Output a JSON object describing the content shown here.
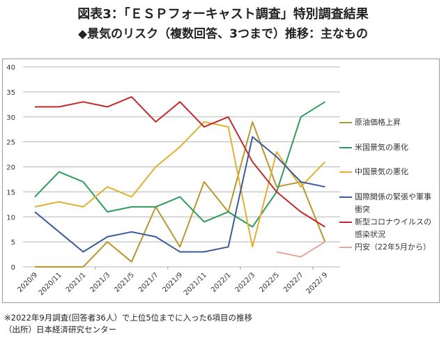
{
  "title": "図表3：「ＥＳＰフォーキャスト調査」特別調査結果",
  "subtitle": "◆景気のリスク（複数回答、3つまで）推移：主なもの",
  "footnote": "※2022年9月調査(回答者36人）で上位5位までに入った6項目の推移",
  "source": "（出所）日本経済研究センター",
  "chart_data": {
    "type": "line",
    "title": "景気のリスク（複数回答、3つまで）推移：主なもの",
    "xlabel": "",
    "ylabel": "",
    "ylim": [
      0,
      40
    ],
    "yticks": [
      0,
      5,
      10,
      15,
      20,
      25,
      30,
      35,
      40
    ],
    "grid": true,
    "legend": "right",
    "categories": [
      "2020/9",
      "2020/11",
      "2021/1",
      "2021/3",
      "2021/5",
      "2021/7",
      "2021/9",
      "2021/11",
      "2022/1",
      "2022/3",
      "2022/5",
      "2022/7",
      "2022/ 9"
    ],
    "series": [
      {
        "name": "原油価格上昇",
        "color": "#B8962E",
        "values": [
          0,
          0,
          0,
          5,
          1,
          12,
          4,
          17,
          11,
          29,
          16,
          17,
          5
        ]
      },
      {
        "name": "米国景気の悪化",
        "color": "#2E9B5A",
        "values": [
          14,
          19,
          17,
          11,
          12,
          12,
          14,
          9,
          11,
          8,
          15,
          30,
          33
        ]
      },
      {
        "name": "中国景気の悪化",
        "color": "#E0B02E",
        "values": [
          12,
          13,
          12,
          16,
          14,
          20,
          24,
          29,
          28,
          4,
          23,
          16,
          21
        ]
      },
      {
        "name": "国際関係の緊張や軍事衝突",
        "color": "#3A5A9A",
        "values": [
          11,
          7,
          3,
          6,
          7,
          6,
          3,
          3,
          4,
          26,
          22,
          17,
          16
        ]
      },
      {
        "name": "新型コロナウイルスの感染状況",
        "color": "#C0282A",
        "values": [
          32,
          32,
          33,
          32,
          34,
          29,
          33,
          28,
          30,
          21,
          15,
          11,
          8
        ]
      },
      {
        "name": "円安（22年5月から）",
        "color": "#E8A898",
        "values": [
          null,
          null,
          null,
          null,
          null,
          null,
          null,
          null,
          null,
          null,
          3,
          2,
          5
        ]
      }
    ],
    "legend_labels": [
      [
        "原油価格上昇"
      ],
      [
        "米国景気の悪化"
      ],
      [
        "中国景気の悪化"
      ],
      [
        "国際関係の緊張や軍事",
        "衝突"
      ],
      [
        "新型コロナウイルスの",
        "感染状況"
      ],
      [
        "円安（22年5月から）"
      ]
    ]
  }
}
